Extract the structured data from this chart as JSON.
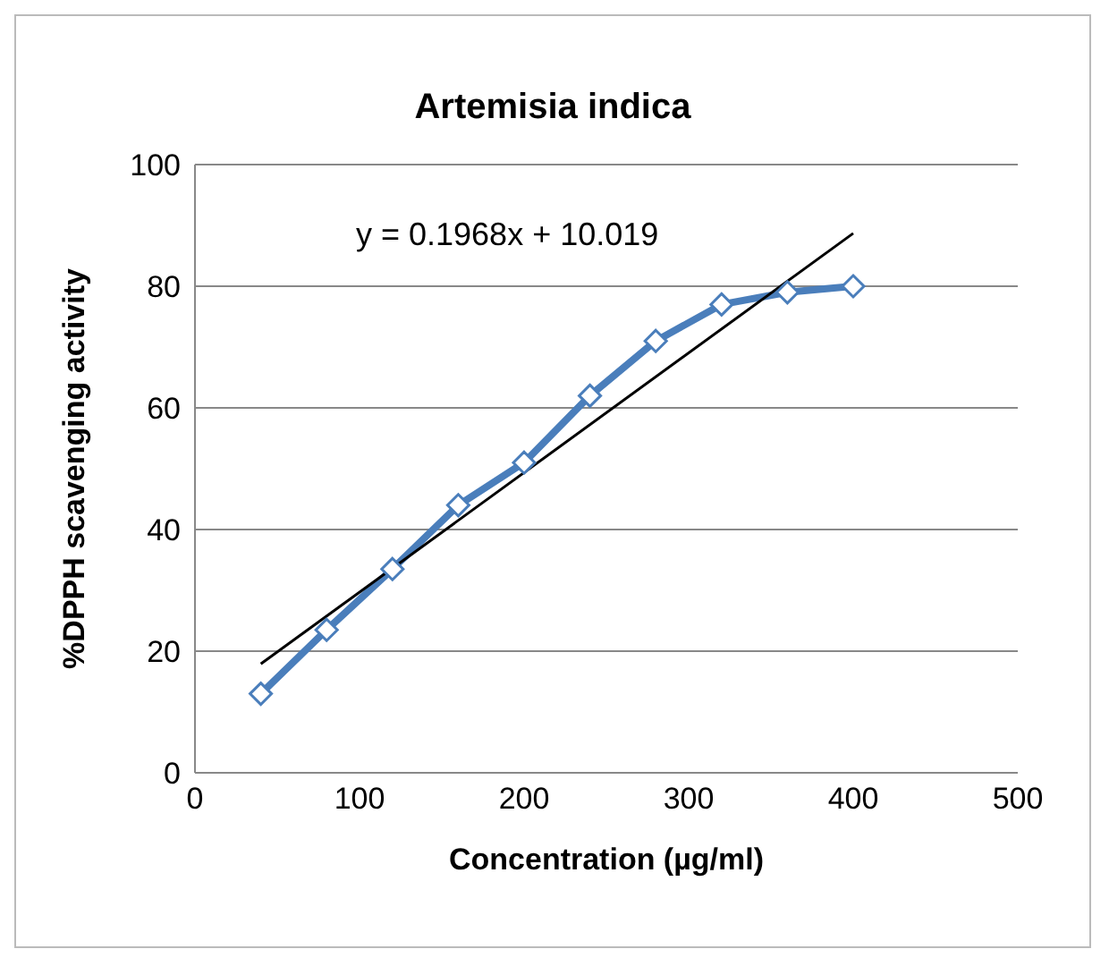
{
  "chart_data": {
    "type": "line",
    "title": "Artemisia indica",
    "xlabel": "Concentration (µg/ml)",
    "ylabel": "%DPPH scavenging activity",
    "x": [
      40,
      80,
      120,
      160,
      200,
      240,
      280,
      320,
      360,
      400
    ],
    "series": [
      {
        "color": "#4a7ebb",
        "values": [
          13,
          23.5,
          33.5,
          44,
          51,
          62,
          71,
          77,
          79,
          80
        ],
        "marker": "diamond"
      },
      {
        "type": "line",
        "color": "#000000",
        "x": [
          40,
          400
        ],
        "values": [
          17.9,
          88.7
        ],
        "marker": "none"
      }
    ],
    "xlim": [
      0,
      500
    ],
    "xticks": [
      0,
      100,
      200,
      300,
      400,
      500
    ],
    "ylim": [
      0,
      100
    ],
    "yticks": [
      0,
      20,
      40,
      60,
      80,
      100
    ],
    "grid": "y",
    "annotations": [
      "y = 0.1968x + 10.019"
    ]
  }
}
